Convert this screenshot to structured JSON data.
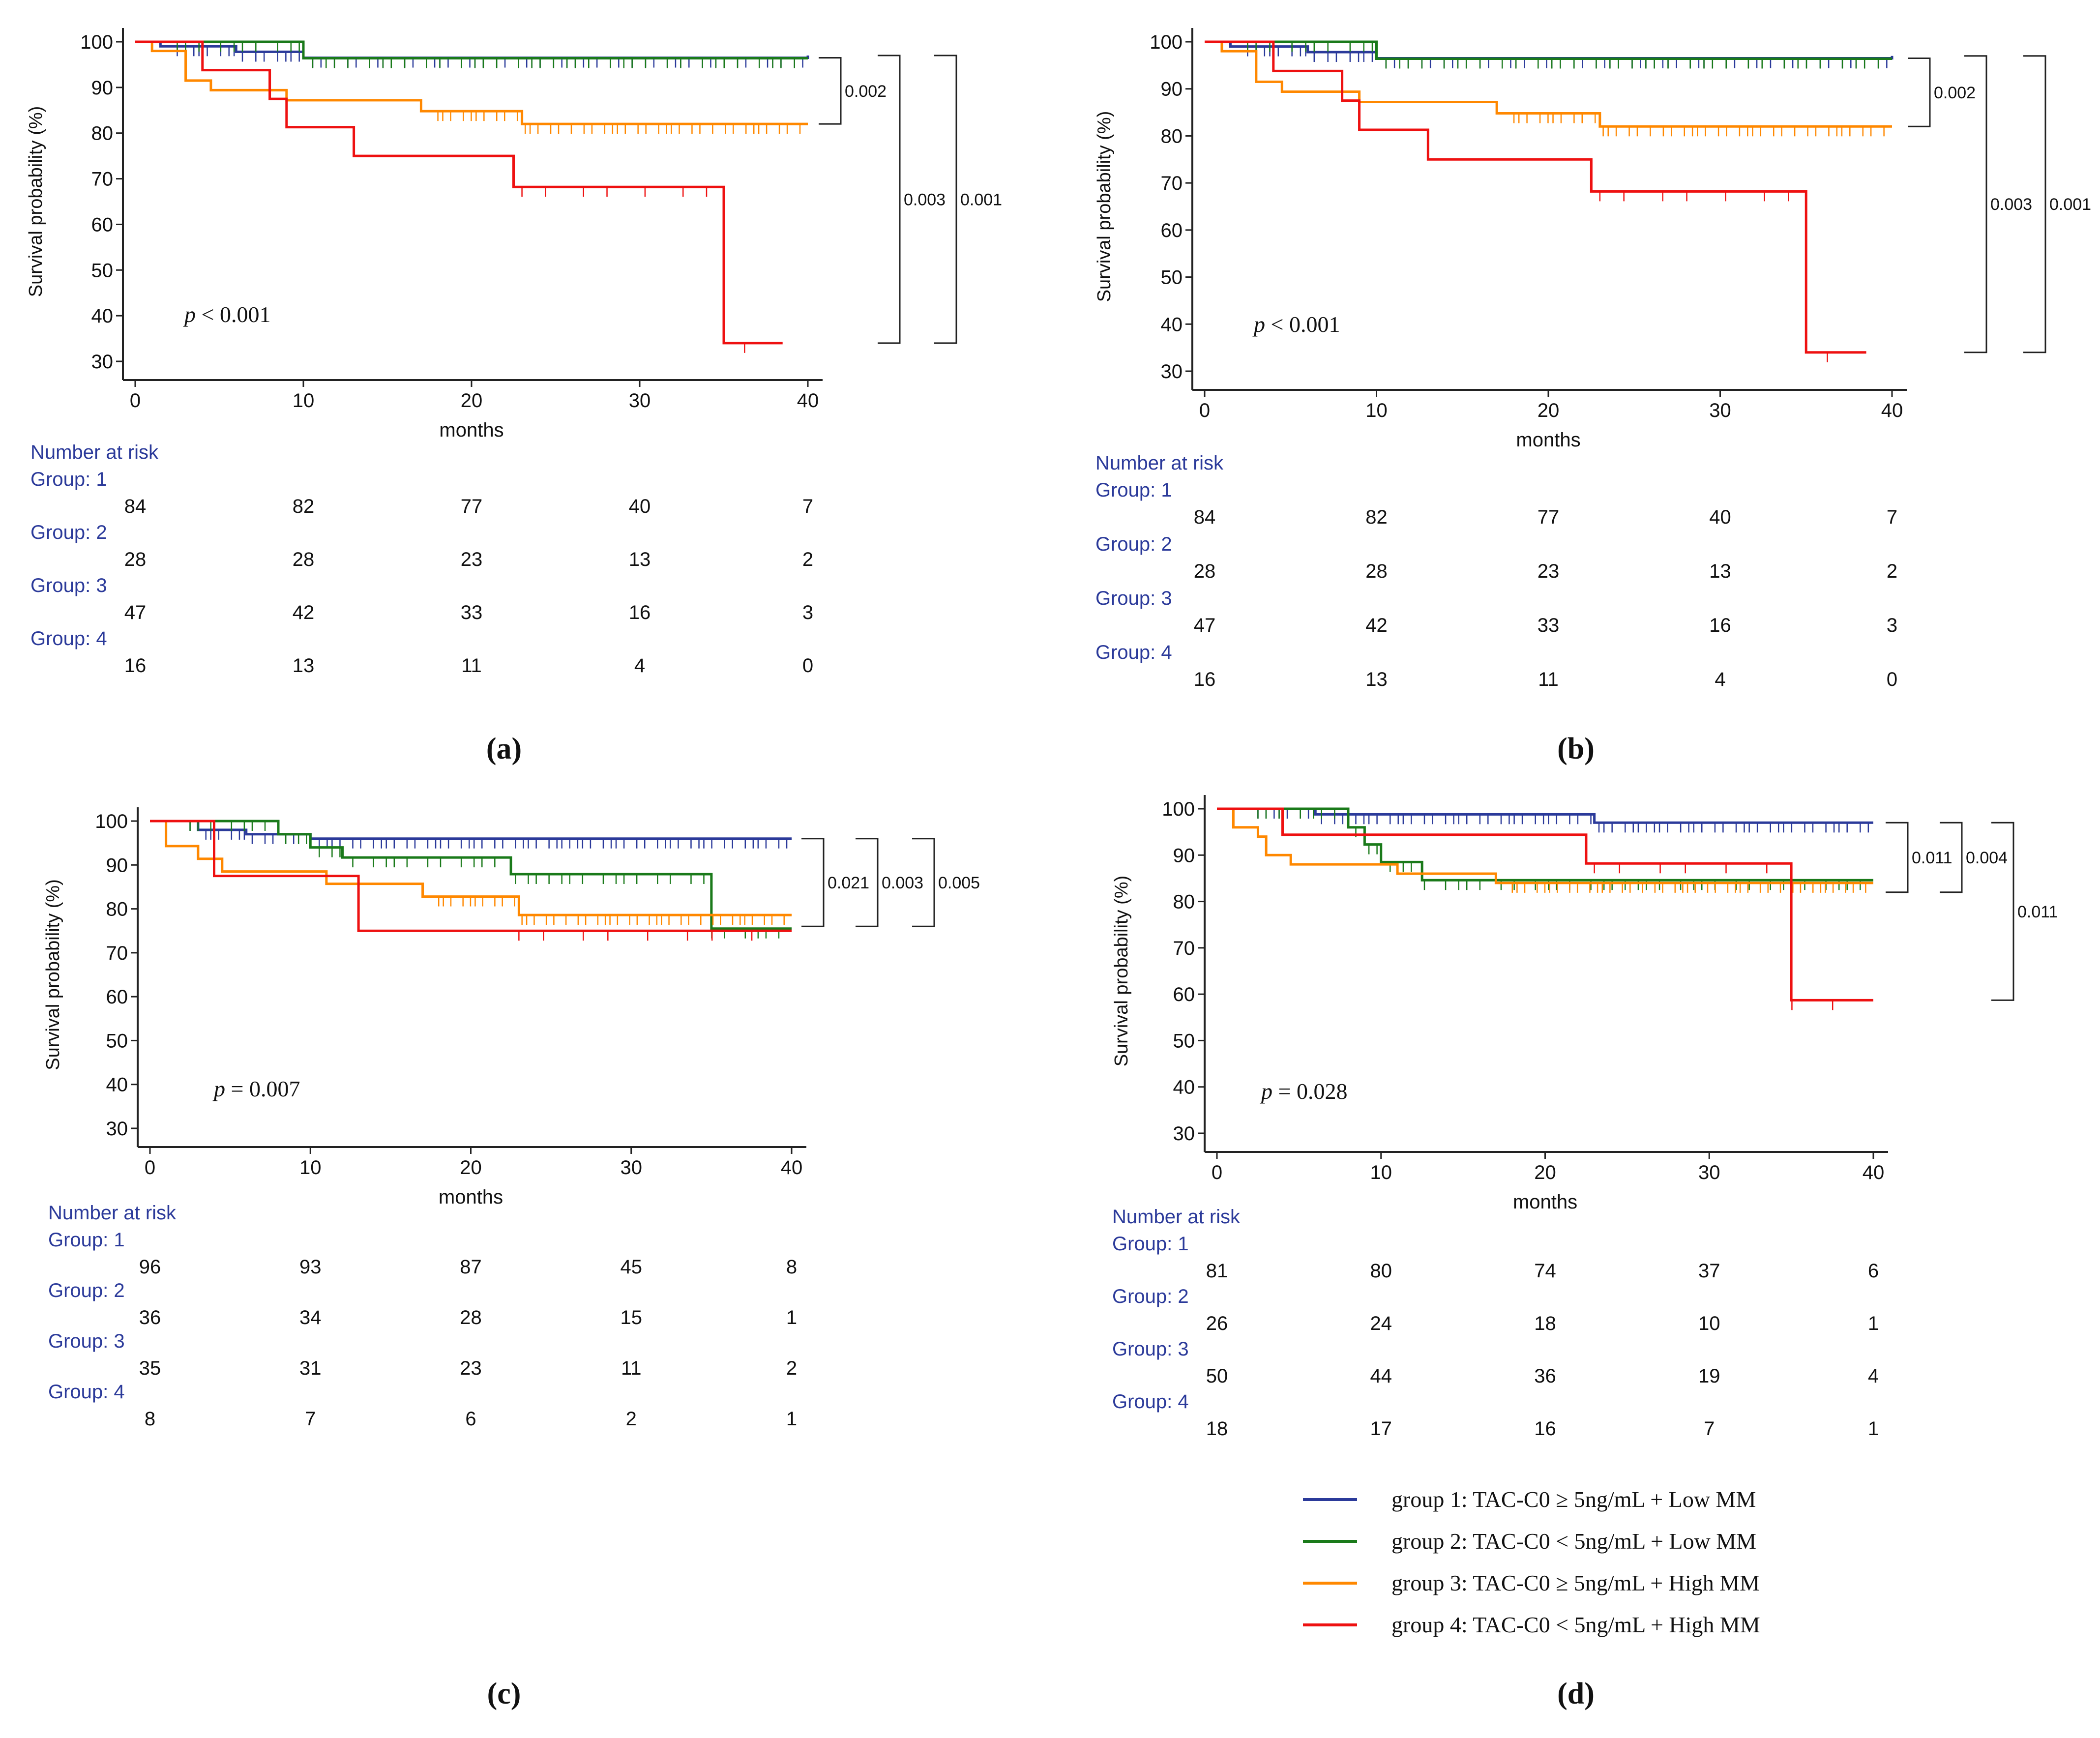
{
  "chart_data": [
    {
      "type": "line",
      "panel_label": "(a)",
      "xlabel": "months",
      "ylabel": "Survival probability (%)",
      "xlim": [
        0,
        40
      ],
      "ylim": [
        30,
        100
      ],
      "xticks": [
        "0",
        "10",
        "20",
        "30",
        "40"
      ],
      "yticks": [
        "30",
        "40",
        "50",
        "60",
        "70",
        "80",
        "90",
        "100"
      ],
      "p_text": "< 0.001",
      "brackets": [
        {
          "y_from": 96.5,
          "y_to": 82,
          "label": "0.002"
        },
        {
          "y_from": 97,
          "y_to": 34,
          "label": "0.003"
        },
        {
          "y_from": 97,
          "y_to": 34,
          "label": "0.001"
        }
      ],
      "series": [
        {
          "name": "group 1",
          "color": "#2b3a9a",
          "steps": [
            [
              0,
              100
            ],
            [
              1.5,
              99
            ],
            [
              6,
              97.8
            ],
            [
              10,
              96.5
            ],
            [
              40,
              97
            ]
          ],
          "censor_y": 96.5
        },
        {
          "name": "group 2",
          "color": "#1a7a1a",
          "steps": [
            [
              0,
              100
            ],
            [
              10,
              96.4
            ],
            [
              40,
              96.4
            ]
          ],
          "censor_y": 96
        },
        {
          "name": "group 3",
          "color": "#ff8800",
          "steps": [
            [
              0,
              100
            ],
            [
              1,
              98
            ],
            [
              3,
              91.5
            ],
            [
              4.5,
              89.4
            ],
            [
              9,
              87.2
            ],
            [
              17,
              84.8
            ],
            [
              23,
              82
            ],
            [
              40,
              82
            ]
          ],
          "censor_y": 82
        },
        {
          "name": "group 4",
          "color": "#ee1111",
          "steps": [
            [
              0,
              100
            ],
            [
              4,
              93.8
            ],
            [
              8,
              87.5
            ],
            [
              9,
              81.3
            ],
            [
              13,
              75
            ],
            [
              22.5,
              68.2
            ],
            [
              35,
              34
            ],
            [
              38.5,
              34
            ]
          ],
          "censor_y": 68
        }
      ],
      "risk_table": {
        "header": "Number at risk",
        "groups": [
          {
            "label": "Group: 1",
            "values": [
              "84",
              "82",
              "77",
              "40",
              "7"
            ]
          },
          {
            "label": "Group: 2",
            "values": [
              "28",
              "28",
              "23",
              "13",
              "2"
            ]
          },
          {
            "label": "Group: 3",
            "values": [
              "47",
              "42",
              "33",
              "16",
              "3"
            ]
          },
          {
            "label": "Group: 4",
            "values": [
              "16",
              "13",
              "11",
              "4",
              "0"
            ]
          }
        ]
      }
    },
    {
      "type": "line",
      "panel_label": "(b)",
      "xlabel": "months",
      "ylabel": "Survival probability (%)",
      "xlim": [
        0,
        40
      ],
      "ylim": [
        30,
        100
      ],
      "xticks": [
        "0",
        "10",
        "20",
        "30",
        "40"
      ],
      "yticks": [
        "30",
        "40",
        "50",
        "60",
        "70",
        "80",
        "90",
        "100"
      ],
      "p_text": "< 0.001",
      "brackets": [
        {
          "y_from": 96.5,
          "y_to": 82,
          "label": "0.002"
        },
        {
          "y_from": 97,
          "y_to": 34,
          "label": "0.003"
        },
        {
          "y_from": 97,
          "y_to": 34,
          "label": "0.001"
        }
      ],
      "series": [
        {
          "name": "group 1",
          "color": "#2b3a9a",
          "steps": [
            [
              0,
              100
            ],
            [
              1.5,
              99
            ],
            [
              6,
              97.8
            ],
            [
              10,
              96.5
            ],
            [
              40,
              97
            ]
          ],
          "censor_y": 96.5
        },
        {
          "name": "group 2",
          "color": "#1a7a1a",
          "steps": [
            [
              0,
              100
            ],
            [
              10,
              96.4
            ],
            [
              40,
              96.4
            ]
          ],
          "censor_y": 96
        },
        {
          "name": "group 3",
          "color": "#ff8800",
          "steps": [
            [
              0,
              100
            ],
            [
              1,
              98
            ],
            [
              3,
              91.5
            ],
            [
              4.5,
              89.4
            ],
            [
              9,
              87.2
            ],
            [
              17,
              84.8
            ],
            [
              23,
              82
            ],
            [
              40,
              82
            ]
          ],
          "censor_y": 82
        },
        {
          "name": "group 4",
          "color": "#ee1111",
          "steps": [
            [
              0,
              100
            ],
            [
              4,
              93.8
            ],
            [
              8,
              87.5
            ],
            [
              9,
              81.3
            ],
            [
              13,
              75
            ],
            [
              22.5,
              68.2
            ],
            [
              35,
              34
            ],
            [
              38.5,
              34
            ]
          ],
          "censor_y": 68
        }
      ],
      "risk_table": {
        "header": "Number at risk",
        "groups": [
          {
            "label": "Group: 1",
            "values": [
              "84",
              "82",
              "77",
              "40",
              "7"
            ]
          },
          {
            "label": "Group: 2",
            "values": [
              "28",
              "28",
              "23",
              "13",
              "2"
            ]
          },
          {
            "label": "Group: 3",
            "values": [
              "47",
              "42",
              "33",
              "16",
              "3"
            ]
          },
          {
            "label": "Group: 4",
            "values": [
              "16",
              "13",
              "11",
              "4",
              "0"
            ]
          }
        ]
      }
    },
    {
      "type": "line",
      "panel_label": "(c)",
      "xlabel": "months",
      "ylabel": "Survival probability (%)",
      "xlim": [
        0,
        40
      ],
      "ylim": [
        30,
        100
      ],
      "xticks": [
        "0",
        "10",
        "20",
        "30",
        "40"
      ],
      "yticks": [
        "30",
        "40",
        "50",
        "60",
        "70",
        "80",
        "90",
        "100"
      ],
      "p_text": "= 0.007",
      "brackets": [
        {
          "y_from": 96,
          "y_to": 76,
          "label": "0.021"
        },
        {
          "y_from": 96,
          "y_to": 76,
          "label": "0.003"
        },
        {
          "y_from": 96,
          "y_to": 76,
          "label": "0.005"
        }
      ],
      "series": [
        {
          "name": "group 1",
          "color": "#2b3a9a",
          "steps": [
            [
              0,
              100
            ],
            [
              3,
              98
            ],
            [
              6,
              97
            ],
            [
              10,
              96
            ],
            [
              40,
              96
            ]
          ],
          "censor_y": 96
        },
        {
          "name": "group 2",
          "color": "#1a7a1a",
          "steps": [
            [
              0,
              100
            ],
            [
              8,
              97
            ],
            [
              10,
              94
            ],
            [
              12,
              91.7
            ],
            [
              22.5,
              87.9
            ],
            [
              35,
              75.5
            ],
            [
              40,
              75.5
            ]
          ],
          "censor_y": 88
        },
        {
          "name": "group 3",
          "color": "#ff8800",
          "steps": [
            [
              0,
              100
            ],
            [
              1,
              94.3
            ],
            [
              3,
              91.4
            ],
            [
              4.5,
              88.5
            ],
            [
              11,
              85.7
            ],
            [
              17,
              82.8
            ],
            [
              23,
              78.6
            ],
            [
              40,
              78.6
            ]
          ],
          "censor_y": 79
        },
        {
          "name": "group 4",
          "color": "#ee1111",
          "steps": [
            [
              0,
              100
            ],
            [
              4,
              87.5
            ],
            [
              13,
              75
            ],
            [
              40,
              75
            ]
          ],
          "censor_y": 75
        }
      ],
      "risk_table": {
        "header": "Number at risk",
        "groups": [
          {
            "label": "Group: 1",
            "values": [
              "96",
              "93",
              "87",
              "45",
              "8"
            ]
          },
          {
            "label": "Group: 2",
            "values": [
              "36",
              "34",
              "28",
              "15",
              "1"
            ]
          },
          {
            "label": "Group: 3",
            "values": [
              "35",
              "31",
              "23",
              "11",
              "2"
            ]
          },
          {
            "label": "Group: 4",
            "values": [
              "8",
              "7",
              "6",
              "2",
              "1"
            ]
          }
        ]
      }
    },
    {
      "type": "line",
      "panel_label": "(d)",
      "xlabel": "months",
      "ylabel": "Survival probability (%)",
      "xlim": [
        0,
        40
      ],
      "ylim": [
        30,
        100
      ],
      "xticks": [
        "0",
        "10",
        "20",
        "30",
        "40"
      ],
      "yticks": [
        "30",
        "40",
        "50",
        "60",
        "70",
        "80",
        "90",
        "100"
      ],
      "p_text": "= 0.028",
      "brackets": [
        {
          "y_from": 97,
          "y_to": 82,
          "label": "0.011"
        },
        {
          "y_from": 97,
          "y_to": 82,
          "label": "0.004"
        },
        {
          "y_from": 97,
          "y_to": 58.7,
          "label": "0.011"
        }
      ],
      "series": [
        {
          "name": "group 1",
          "color": "#2b3a9a",
          "steps": [
            [
              0,
              100
            ],
            [
              6,
              98.8
            ],
            [
              23,
              97
            ],
            [
              40,
              97
            ]
          ],
          "censor_y": 97
        },
        {
          "name": "group 2",
          "color": "#1a7a1a",
          "steps": [
            [
              0,
              100
            ],
            [
              8,
              96
            ],
            [
              9,
              92.3
            ],
            [
              10,
              88.5
            ],
            [
              12.5,
              84.6
            ],
            [
              40,
              84.6
            ]
          ],
          "censor_y": 84.6
        },
        {
          "name": "group 3",
          "color": "#ff8800",
          "steps": [
            [
              0,
              100
            ],
            [
              1,
              96
            ],
            [
              2.5,
              94
            ],
            [
              3,
              90
            ],
            [
              4.5,
              88
            ],
            [
              11,
              86
            ],
            [
              17,
              84
            ],
            [
              40,
              84
            ]
          ],
          "censor_y": 84
        },
        {
          "name": "group 4",
          "color": "#ee1111",
          "steps": [
            [
              0,
              100
            ],
            [
              4,
              94.4
            ],
            [
              22.5,
              88.2
            ],
            [
              35,
              58.7
            ],
            [
              40,
              58.7
            ]
          ],
          "censor_y": 88.2
        }
      ],
      "risk_table": {
        "header": "Number at risk",
        "groups": [
          {
            "label": "Group: 1",
            "values": [
              "81",
              "80",
              "74",
              "37",
              "6"
            ]
          },
          {
            "label": "Group: 2",
            "values": [
              "26",
              "24",
              "18",
              "10",
              "1"
            ]
          },
          {
            "label": "Group: 3",
            "values": [
              "50",
              "44",
              "36",
              "19",
              "4"
            ]
          },
          {
            "label": "Group: 4",
            "values": [
              "18",
              "17",
              "16",
              "7",
              "1"
            ]
          }
        ]
      }
    }
  ],
  "legend": [
    {
      "label": "group 1: TAC-C0 ≥ 5ng/mL  +  Low MM",
      "color": "#2b3a9a"
    },
    {
      "label": "group 2: TAC-C0 < 5ng/mL  +  Low MM",
      "color": "#1a7a1a"
    },
    {
      "label": "group 3: TAC-C0 ≥ 5ng/mL + High MM",
      "color": "#ff8800"
    },
    {
      "label": "group 4: TAC-C0 < 5ng/mL  +  High MM",
      "color": "#ee1111"
    }
  ],
  "p_symbol": "p"
}
